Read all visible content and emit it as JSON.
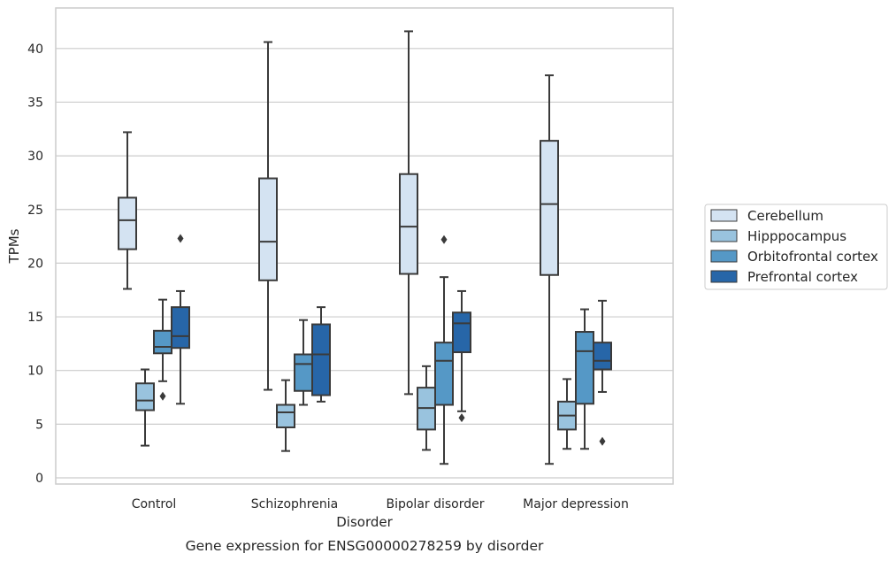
{
  "chart_data": {
    "type": "box",
    "title": "",
    "caption": "Gene expression for ENSG00000278259 by disorder",
    "xlabel": "Disorder",
    "ylabel": "TPMs",
    "ylim": [
      -0.5,
      43.5
    ],
    "yticks": [
      0,
      5,
      10,
      15,
      20,
      25,
      30,
      35,
      40
    ],
    "grid": "horizontal",
    "legend_position": "right",
    "categories": [
      "Control",
      "Schizophrenia",
      "Bipolar disorder",
      "Major depression"
    ],
    "series": [
      {
        "name": "Cerebellum",
        "color": "#d4e3f2",
        "boxes": [
          {
            "whisker_low": 17.6,
            "q1": 21.3,
            "median": 24.0,
            "q3": 26.1,
            "whisker_high": 32.2,
            "outliers": []
          },
          {
            "whisker_low": 8.2,
            "q1": 18.4,
            "median": 22.0,
            "q3": 27.9,
            "whisker_high": 40.6,
            "outliers": []
          },
          {
            "whisker_low": 7.8,
            "q1": 19.0,
            "median": 23.4,
            "q3": 28.3,
            "whisker_high": 41.6,
            "outliers": []
          },
          {
            "whisker_low": 1.3,
            "q1": 18.9,
            "median": 25.5,
            "q3": 31.4,
            "whisker_high": 37.5,
            "outliers": []
          }
        ]
      },
      {
        "name": "Hipppocampus",
        "color": "#99c3de",
        "boxes": [
          {
            "whisker_low": 3.0,
            "q1": 6.3,
            "median": 7.2,
            "q3": 8.8,
            "whisker_high": 10.1,
            "outliers": []
          },
          {
            "whisker_low": 2.5,
            "q1": 4.7,
            "median": 6.1,
            "q3": 6.8,
            "whisker_high": 9.1,
            "outliers": []
          },
          {
            "whisker_low": 2.6,
            "q1": 4.5,
            "median": 6.5,
            "q3": 8.4,
            "whisker_high": 10.4,
            "outliers": []
          },
          {
            "whisker_low": 2.7,
            "q1": 4.5,
            "median": 5.8,
            "q3": 7.1,
            "whisker_high": 9.2,
            "outliers": []
          }
        ]
      },
      {
        "name": "Orbitofrontal cortex",
        "color": "#5598c6",
        "boxes": [
          {
            "whisker_low": 9.0,
            "q1": 11.6,
            "median": 12.2,
            "q3": 13.7,
            "whisker_high": 16.6,
            "outliers": [
              7.6
            ]
          },
          {
            "whisker_low": 6.8,
            "q1": 8.1,
            "median": 10.6,
            "q3": 11.5,
            "whisker_high": 14.7,
            "outliers": []
          },
          {
            "whisker_low": 1.3,
            "q1": 6.8,
            "median": 10.9,
            "q3": 12.6,
            "whisker_high": 18.7,
            "outliers": [
              22.2
            ]
          },
          {
            "whisker_low": 2.7,
            "q1": 6.9,
            "median": 11.8,
            "q3": 13.6,
            "whisker_high": 15.7,
            "outliers": []
          }
        ]
      },
      {
        "name": "Prefrontal cortex",
        "color": "#2766a8",
        "boxes": [
          {
            "whisker_low": 6.9,
            "q1": 12.1,
            "median": 13.2,
            "q3": 15.9,
            "whisker_high": 17.4,
            "outliers": [
              22.3
            ]
          },
          {
            "whisker_low": 7.1,
            "q1": 7.7,
            "median": 11.5,
            "q3": 14.3,
            "whisker_high": 15.9,
            "outliers": []
          },
          {
            "whisker_low": 6.2,
            "q1": 11.7,
            "median": 14.4,
            "q3": 15.4,
            "whisker_high": 17.4,
            "outliers": [
              5.6
            ]
          },
          {
            "whisker_low": 8.0,
            "q1": 10.1,
            "median": 10.9,
            "q3": 12.6,
            "whisker_high": 16.5,
            "outliers": [
              3.4
            ]
          }
        ]
      }
    ]
  }
}
